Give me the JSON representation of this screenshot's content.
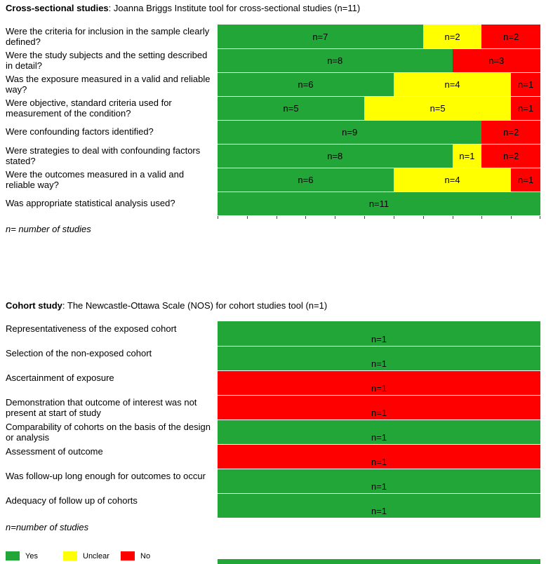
{
  "chart_data": [
    {
      "type": "bar",
      "orientation": "horizontal",
      "stacked": true,
      "title": {
        "bold": "Cross-sectional studies",
        "rest": ": Joanna Briggs Institute tool for cross-sectional studies (n=11)"
      },
      "categories": [
        "Were the criteria for inclusion in the sample clearly defined?",
        "Were the study subjects and the setting described in detail?",
        "Was the exposure measured in a valid and reliable way?",
        "Were objective, standard criteria used for measurement of the condition?",
        "Were confounding factors identified?",
        "Were strategies to deal with confounding factors stated?",
        "Were the outcomes measured in a valid and reliable way?",
        "Was appropriate statistical analysis used?"
      ],
      "series": [
        {
          "name": "Yes",
          "color": "#23A638",
          "values": [
            7,
            8,
            6,
            5,
            9,
            8,
            6,
            11
          ]
        },
        {
          "name": "Unclear",
          "color": "#FFFF00",
          "values": [
            2,
            0,
            4,
            5,
            0,
            1,
            4,
            0
          ]
        },
        {
          "name": "No",
          "color": "#FF0000",
          "values": [
            2,
            3,
            1,
            1,
            2,
            2,
            1,
            0
          ]
        }
      ],
      "xlim": [
        0,
        11
      ],
      "data_label_format": "n={value}",
      "axis_tick_count": 12,
      "note": "n= number of studies"
    },
    {
      "type": "bar",
      "orientation": "horizontal",
      "stacked": true,
      "title": {
        "bold": "Cohort study",
        "rest": ": The Newcastle-Ottawa Scale (NOS) for cohort studies tool (n=1)"
      },
      "categories": [
        "Representativeness of the exposed cohort",
        "Selection of the non-exposed cohort",
        "Ascertainment of exposure",
        "Demonstration that outcome of interest was not present at start of study",
        "Comparability of cohorts on the basis of the design or analysis",
        "Assessment of outcome",
        "Was follow-up long enough for outcomes to occur",
        "Adequacy of follow up of cohorts"
      ],
      "series": [
        {
          "name": "Yes",
          "color": "#23A638",
          "values": [
            1,
            1,
            0,
            0,
            1,
            0,
            1,
            1
          ]
        },
        {
          "name": "Unclear",
          "color": "#FFFF00",
          "values": [
            0,
            0,
            0,
            0,
            0,
            0,
            0,
            0
          ]
        },
        {
          "name": "No",
          "color": "#FF0000",
          "values": [
            0,
            0,
            1,
            1,
            0,
            1,
            0,
            0
          ]
        }
      ],
      "xlim": [
        0,
        1
      ],
      "data_label_format": "n={value}",
      "note": "n=number of studies"
    }
  ],
  "legend": {
    "items": [
      {
        "label": "Yes",
        "color": "#23A638"
      },
      {
        "label": "Unclear",
        "color": "#FFFF00"
      },
      {
        "label": "No",
        "color": "#FF0000"
      }
    ]
  },
  "cropped_bar": {
    "color": "#23A638"
  }
}
